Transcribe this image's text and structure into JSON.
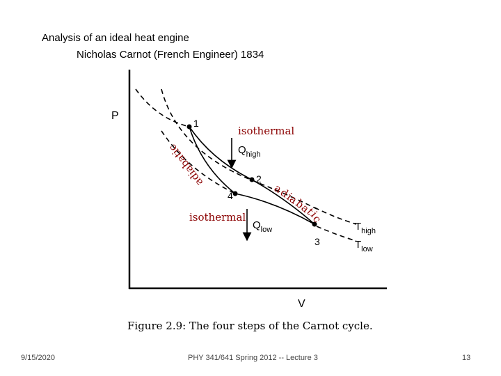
{
  "slide": {
    "title_line1": "Analysis of an ideal heat engine",
    "title_line2": "Nicholas Carnot (French Engineer) 1834"
  },
  "diagram": {
    "axis_y": "P",
    "axis_x": "V",
    "points": {
      "p1": "1",
      "p2": "2",
      "p3": "3",
      "p4": "4"
    },
    "q_high_main": "Q",
    "q_high_sub": "high",
    "q_low_main": "Q",
    "q_low_sub": "low",
    "t_high_main": "T",
    "t_high_sub": "high",
    "t_low_main": "T",
    "t_low_sub": "low",
    "isothermal_top": "isothermal",
    "isothermal_bottom": "isothermal",
    "adiabatic_left": "adiabatic",
    "adiabatic_right_letters": [
      "a",
      "d",
      "i",
      "a",
      "b",
      "a",
      "t",
      "i",
      "c"
    ],
    "caption": "Figure 2.9: The four steps of the Carnot cycle."
  },
  "footer": {
    "date": "9/15/2020",
    "course": "PHY 341/641 Spring 2012 -- Lecture 3",
    "page": "13"
  },
  "colors": {
    "annotation": "#8b0000",
    "curve": "#000000"
  }
}
